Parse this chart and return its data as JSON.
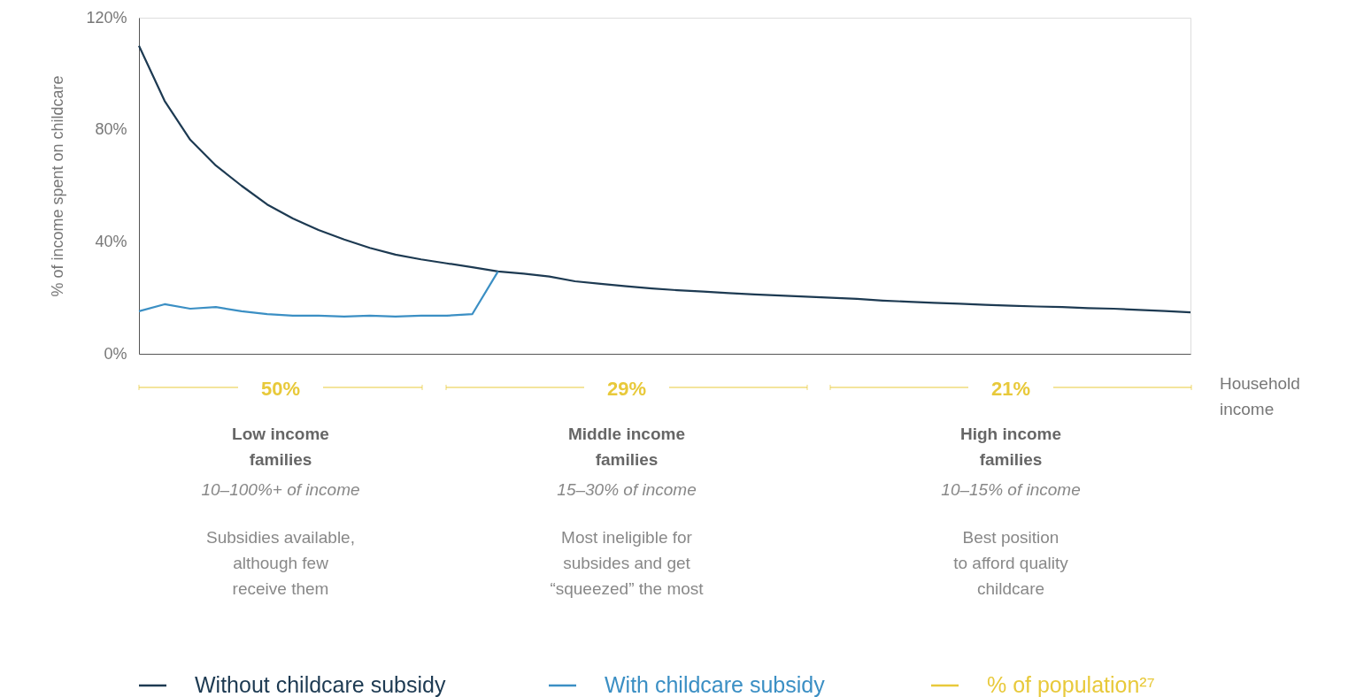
{
  "chart_data": {
    "type": "line",
    "ylabel": "% of income spent on childcare",
    "xlabel": "Household income",
    "categories": [
      null,
      null,
      null,
      null,
      null,
      null,
      null,
      null,
      null,
      null,
      null,
      null,
      null,
      null,
      null,
      null,
      null,
      null,
      null,
      null,
      null,
      null,
      null,
      null,
      null,
      null,
      null,
      null,
      null,
      null,
      null,
      null,
      null,
      null,
      null,
      null,
      null,
      null,
      null,
      null,
      null,
      null
    ],
    "series": [
      {
        "name": "Without childcare subsidy",
        "color": "#1d3a52",
        "values": [
          110,
          90.3,
          76.4,
          67.2,
          60,
          53.3,
          48.3,
          44.2,
          40.8,
          37.8,
          35.4,
          33.7,
          32.3,
          30.9,
          29.4,
          28.6,
          27.6,
          25.9,
          25,
          24.1,
          23.3,
          22.7,
          22.2,
          21.7,
          21.2,
          20.8,
          20.4,
          20,
          19.6,
          19,
          18.6,
          18.2,
          17.9,
          17.5,
          17.2,
          16.9,
          16.7,
          16.3,
          16.1,
          15.7,
          15.3,
          14.8
        ]
      },
      {
        "name": "With childcare subsidy",
        "color": "#3b8fc4",
        "values": [
          15.2,
          17.7,
          16.1,
          16.7,
          15.2,
          14.2,
          13.6,
          13.6,
          13.3,
          13.6,
          13.3,
          13.6,
          13.6,
          14.2,
          29.4,
          null,
          null,
          null,
          null,
          null,
          null,
          null,
          null,
          null,
          null,
          null,
          null,
          null,
          null,
          null,
          null,
          null,
          null,
          null,
          null,
          null,
          null,
          null,
          null,
          null,
          null,
          null
        ]
      }
    ],
    "ylim": [
      0,
      120
    ],
    "yticks": [
      {
        "value": 0,
        "label": "0%"
      },
      {
        "value": 40,
        "label": "40%"
      },
      {
        "value": 80,
        "label": "80%"
      },
      {
        "value": 120,
        "label": "120%"
      }
    ],
    "tick_labels": "y",
    "grid": false,
    "legend": "bottom",
    "line_style": "solid",
    "marker": "none",
    "annotations": [
      "50%",
      "Low income\nfamilies",
      "10–100%+ of income",
      "Subsidies available,\nalthough few\nreceive them",
      "29%",
      "Middle income\nfamilies",
      "15–30% of income",
      "Most ineligible for\nsubsides and get\n“squeezed” the most",
      "21%",
      "High income\nfamilies",
      "10–15% of income",
      "Best position\nto afford quality\nchildcare",
      "% of population²⁷"
    ]
  }
}
